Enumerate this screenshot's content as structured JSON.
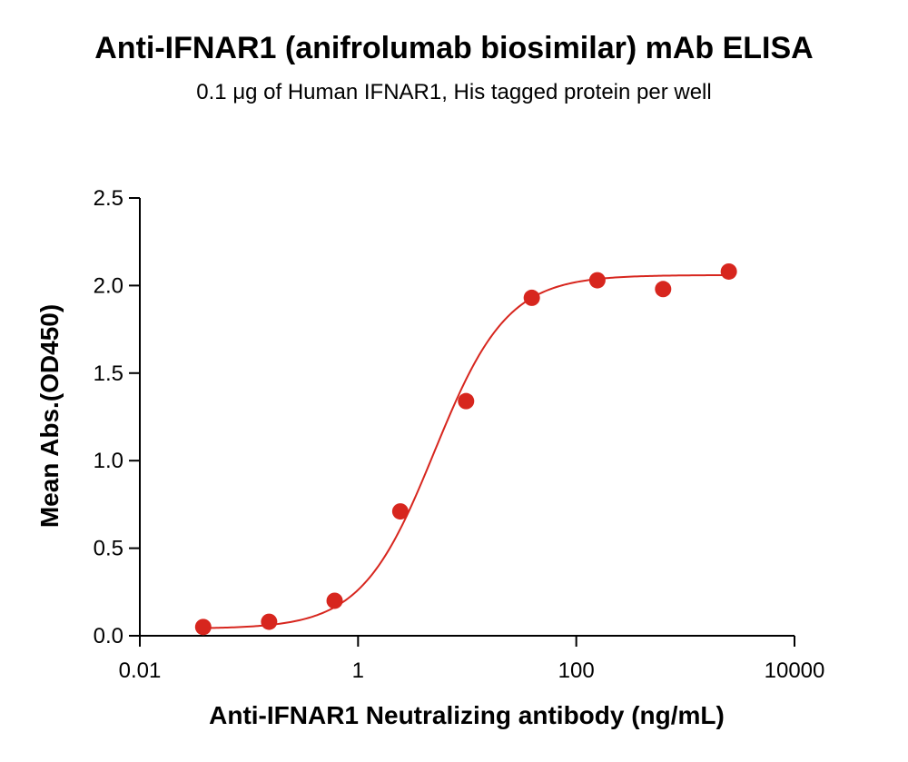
{
  "chart_data": {
    "type": "scatter",
    "title": "Anti-IFNAR1 (anifrolumab biosimilar) mAb ELISA",
    "subtitle": "0.1 μg of Human IFNAR1, His tagged protein per well",
    "xlabel": "Anti-IFNAR1 Neutralizing antibody (ng/mL)",
    "ylabel": "Mean Abs.(OD450)",
    "x_scale": "log",
    "xlim": [
      0.01,
      10000
    ],
    "ylim": [
      0,
      2.5
    ],
    "x_ticks": [
      0.01,
      1,
      100,
      10000
    ],
    "x_tick_labels": [
      "0.01",
      "1",
      "100",
      "10000"
    ],
    "y_ticks": [
      0.0,
      0.5,
      1.0,
      1.5,
      2.0,
      2.5
    ],
    "y_tick_labels": [
      "0.0",
      "0.5",
      "1.0",
      "1.5",
      "2.0",
      "2.5"
    ],
    "grid": false,
    "point_color": "#d7261e",
    "curve_color": "#d7261e",
    "series": [
      {
        "x": [
          0.0381,
          0.153,
          0.61,
          2.44,
          9.77,
          39.1,
          156,
          625,
          2500
        ],
        "y": [
          0.05,
          0.08,
          0.2,
          0.71,
          1.34,
          1.93,
          2.03,
          1.98,
          2.08
        ]
      }
    ],
    "fit": {
      "model": "4PL",
      "bottom": 0.04,
      "top": 2.06,
      "ec50": 5.0,
      "hill": 1.3
    }
  }
}
